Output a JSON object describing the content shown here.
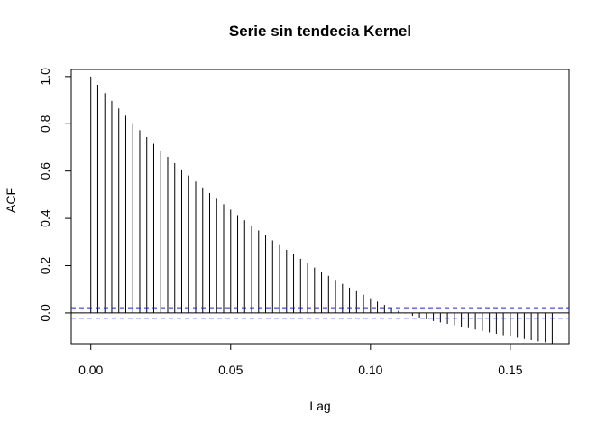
{
  "chart_data": {
    "type": "bar",
    "title": "Serie sin tendecia Kernel",
    "xlabel": "Lag",
    "ylabel": "ACF",
    "xlim": [
      -0.007,
      0.171
    ],
    "ylim": [
      -0.13,
      1.03
    ],
    "x_ticks": [
      0.0,
      0.05,
      0.1,
      0.15
    ],
    "x_tick_labels": [
      "0.00",
      "0.05",
      "0.10",
      "0.15"
    ],
    "y_ticks": [
      0.0,
      0.2,
      0.4,
      0.6,
      0.8,
      1.0
    ],
    "y_tick_labels": [
      "0.0",
      "0.2",
      "0.4",
      "0.6",
      "0.8",
      "1.0"
    ],
    "confidence_limits": [
      0.022,
      -0.022
    ],
    "lag_step": 0.0025,
    "series": [
      {
        "values": [
          1.0,
          0.965,
          0.93,
          0.897,
          0.865,
          0.834,
          0.803,
          0.773,
          0.744,
          0.715,
          0.687,
          0.66,
          0.633,
          0.607,
          0.581,
          0.556,
          0.531,
          0.507,
          0.483,
          0.46,
          0.437,
          0.414,
          0.392,
          0.37,
          0.349,
          0.328,
          0.307,
          0.287,
          0.267,
          0.248,
          0.229,
          0.21,
          0.192,
          0.174,
          0.157,
          0.14,
          0.123,
          0.107,
          0.092,
          0.077,
          0.062,
          0.048,
          0.034,
          0.021,
          0.009,
          -0.002,
          -0.012,
          -0.02,
          -0.027,
          -0.034,
          -0.04,
          -0.046,
          -0.052,
          -0.058,
          -0.064,
          -0.07,
          -0.076,
          -0.082,
          -0.088,
          -0.094,
          -0.1,
          -0.105,
          -0.11,
          -0.115,
          -0.12,
          -0.124,
          -0.128
        ]
      }
    ]
  },
  "colors": {
    "bars": "#000000",
    "confidence": "#2222dd",
    "axis": "#000000"
  }
}
